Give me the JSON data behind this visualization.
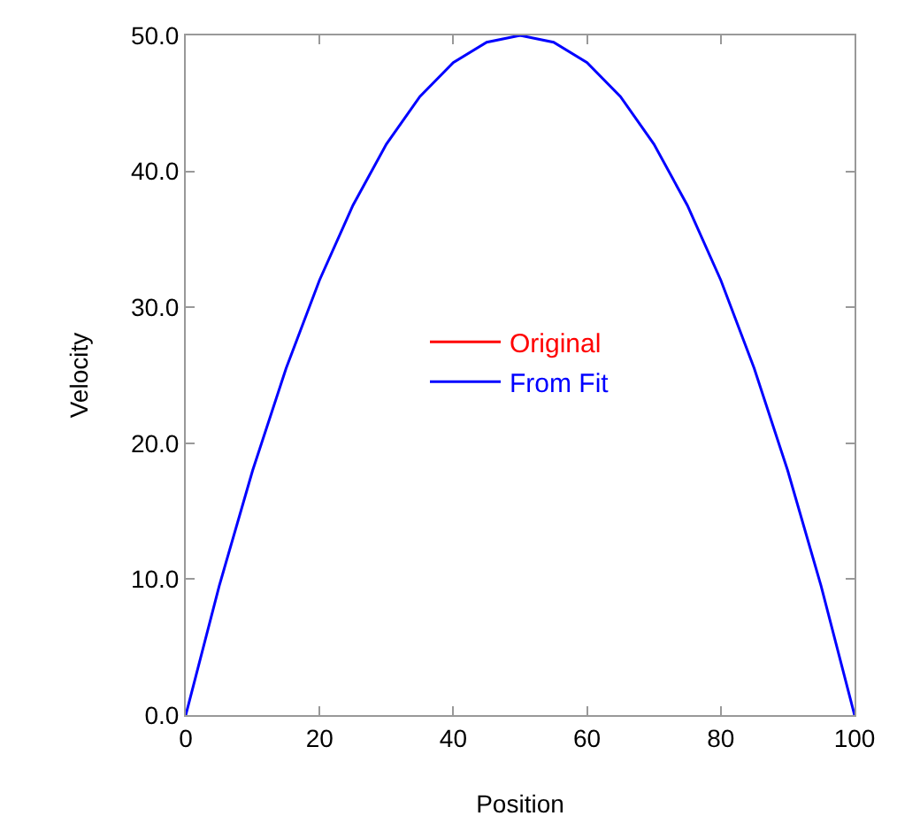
{
  "chart_data": {
    "type": "line",
    "xlabel": "Position",
    "ylabel": "Velocity",
    "x": [
      0,
      5,
      10,
      15,
      20,
      25,
      30,
      35,
      40,
      45,
      50,
      55,
      60,
      65,
      70,
      75,
      80,
      85,
      90,
      95,
      100
    ],
    "series": [
      {
        "name": "Original",
        "color": "#ff0000",
        "values": [
          null,
          null,
          null,
          null,
          null,
          null,
          null,
          null,
          null,
          null,
          null,
          null,
          null,
          null,
          null,
          null,
          null,
          null,
          null,
          null,
          null
        ]
      },
      {
        "name": "From Fit",
        "color": "#0000ff",
        "values": [
          0,
          9.5,
          18,
          25.5,
          32,
          37.5,
          42,
          45.5,
          48,
          49.5,
          50,
          49.5,
          48,
          45.5,
          42,
          37.5,
          32,
          25.5,
          18,
          9.5,
          0
        ]
      }
    ],
    "xlim": [
      0,
      100
    ],
    "xticks": [
      0,
      20,
      40,
      60,
      80,
      100
    ],
    "ylim": [
      0,
      50
    ],
    "yticks": [
      {
        "value": 0,
        "label": "0.0"
      },
      {
        "value": 10,
        "label": "10.0"
      },
      {
        "value": 20,
        "label": "20.0"
      },
      {
        "value": 30,
        "label": "30.0"
      },
      {
        "value": 40,
        "label": "40.0"
      },
      {
        "value": 50,
        "label": "50.0"
      }
    ],
    "legend": "center",
    "marker": "none",
    "line_style": "solid"
  }
}
